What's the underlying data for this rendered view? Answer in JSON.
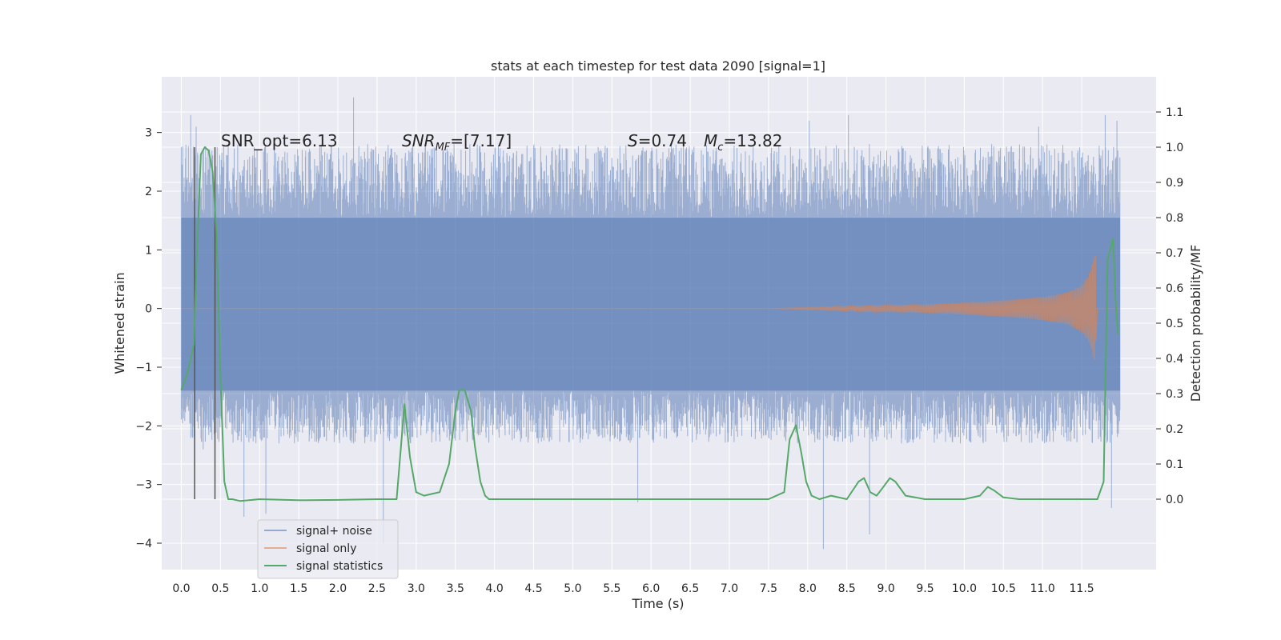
{
  "colors": {
    "background": "#eaeaf2",
    "grid": "#ffffff",
    "noise": "#4c72b0",
    "signal": "#dd8452",
    "stats": "#55a868",
    "marker": "#555555"
  },
  "chart_data": {
    "type": "line",
    "title": "stats at each timestep for test data 2090 [signal=1]",
    "xlabel": "Time (s)",
    "ylabel": "Whitened strain",
    "y2label": "Detection probability/MF",
    "xlim": [
      -0.25,
      12.45
    ],
    "ylim": [
      -4.45,
      3.95
    ],
    "y2lim": [
      -0.2,
      1.2
    ],
    "x_ticks": [
      "0.0",
      "0.5",
      "1.0",
      "1.5",
      "2.0",
      "2.5",
      "3.0",
      "3.5",
      "4.0",
      "4.5",
      "5.0",
      "5.5",
      "6.0",
      "6.5",
      "7.0",
      "7.5",
      "8.0",
      "8.5",
      "9.0",
      "9.5",
      "10.0",
      "10.5",
      "11.0",
      "11.5"
    ],
    "y_ticks": [
      "3",
      "2",
      "1",
      "0",
      "−1",
      "−2",
      "−3",
      "−4"
    ],
    "y2_ticks": [
      "1.1",
      "1.0",
      "0.9",
      "0.8",
      "0.7",
      "0.6",
      "0.5",
      "0.4",
      "0.3",
      "0.2",
      "0.1",
      "0.0"
    ],
    "grid": true,
    "legend_position": "lower-left",
    "annotations": {
      "snr_opt": "SNR_opt=6.13",
      "snr_mf_label": "SNR",
      "snr_mf_sub": "MF",
      "snr_mf_value": "=[7.17]",
      "s_label": "S",
      "s_value": "=0.74",
      "mc_label": "M",
      "mc_sub": "c",
      "mc_value": "=13.82"
    },
    "marker_lines_x": [
      0.17,
      0.43
    ],
    "series": [
      {
        "name": "signal+ noise",
        "axis": "left",
        "x_range": [
          0.0,
          11.99
        ],
        "core_band": [
          -1.4,
          1.55
        ],
        "typical_peak": [
          -2.3,
          2.8
        ],
        "extremes": [
          {
            "x": 0.12,
            "y": 3.3
          },
          {
            "x": 0.19,
            "y": 3.1
          },
          {
            "x": 0.28,
            "y": -2.4
          },
          {
            "x": 0.8,
            "y": -3.55
          },
          {
            "x": 1.08,
            "y": -3.5
          },
          {
            "x": 2.2,
            "y": 3.6
          },
          {
            "x": 2.58,
            "y": -4.0
          },
          {
            "x": 5.83,
            "y": -3.3
          },
          {
            "x": 8.02,
            "y": 3.2
          },
          {
            "x": 8.2,
            "y": -4.1
          },
          {
            "x": 8.52,
            "y": 3.3
          },
          {
            "x": 8.79,
            "y": -3.85
          },
          {
            "x": 10.95,
            "y": 3.1
          },
          {
            "x": 11.8,
            "y": 3.3
          },
          {
            "x": 11.88,
            "y": -3.4
          },
          {
            "x": 11.95,
            "y": 3.2
          }
        ]
      },
      {
        "name": "signal only",
        "axis": "left",
        "envelope_x": [
          0.0,
          7.5,
          8.5,
          9.5,
          10.0,
          10.5,
          11.0,
          11.3,
          11.5,
          11.6,
          11.65,
          11.7
        ],
        "envelope_amp": [
          0.0,
          0.0,
          0.04,
          0.07,
          0.1,
          0.14,
          0.2,
          0.27,
          0.4,
          0.6,
          0.85,
          1.1
        ]
      },
      {
        "name": "signal statistics",
        "axis": "right",
        "x": [
          0.0,
          0.08,
          0.16,
          0.2,
          0.25,
          0.3,
          0.35,
          0.4,
          0.45,
          0.5,
          0.55,
          0.6,
          0.65,
          0.75,
          1.0,
          1.5,
          2.0,
          2.5,
          2.75,
          2.85,
          2.92,
          3.0,
          3.1,
          3.2,
          3.3,
          3.42,
          3.5,
          3.55,
          3.62,
          3.7,
          3.75,
          3.82,
          3.88,
          3.93,
          4.0,
          4.1,
          4.5,
          5.0,
          5.5,
          6.0,
          6.5,
          7.0,
          7.5,
          7.7,
          7.77,
          7.85,
          7.92,
          7.98,
          8.05,
          8.15,
          8.3,
          8.5,
          8.65,
          8.72,
          8.8,
          8.88,
          8.95,
          9.05,
          9.12,
          9.25,
          9.5,
          10.0,
          10.2,
          10.3,
          10.38,
          10.5,
          10.7,
          11.0,
          11.5,
          11.7,
          11.78,
          11.83,
          11.9,
          11.93,
          11.96
        ],
        "y": [
          0.31,
          0.36,
          0.44,
          0.7,
          0.98,
          1.0,
          0.99,
          0.93,
          0.75,
          0.35,
          0.05,
          0.0,
          0.0,
          -0.005,
          0.0,
          -0.003,
          -0.002,
          0.0,
          0.0,
          0.27,
          0.12,
          0.02,
          0.01,
          0.015,
          0.02,
          0.1,
          0.25,
          0.31,
          0.31,
          0.25,
          0.15,
          0.05,
          0.01,
          0.0,
          0.0,
          0.0,
          0.0,
          0.0,
          0.0,
          0.0,
          0.0,
          0.0,
          0.0,
          0.02,
          0.17,
          0.21,
          0.13,
          0.05,
          0.01,
          0.0,
          0.01,
          0.0,
          0.05,
          0.06,
          0.02,
          0.01,
          0.03,
          0.06,
          0.05,
          0.01,
          0.0,
          0.0,
          0.01,
          0.035,
          0.025,
          0.005,
          0.0,
          0.0,
          0.0,
          0.0,
          0.05,
          0.68,
          0.74,
          0.58,
          0.47
        ]
      }
    ]
  }
}
